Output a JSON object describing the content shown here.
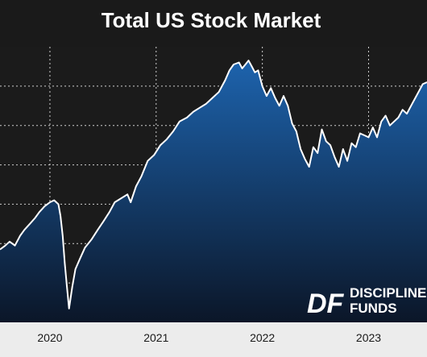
{
  "chart_data": {
    "type": "area",
    "title": "Total US Stock Market",
    "xlabel": "",
    "ylabel": "",
    "x_ticks": [
      "2020",
      "2021",
      "2022",
      "2023"
    ],
    "x_tick_positions": [
      2020.0,
      2021.0,
      2022.0,
      2023.0
    ],
    "xlim": [
      2019.53,
      2023.55
    ],
    "ylim": [
      0,
      7
    ],
    "grid": true,
    "gridlines_y": [
      1,
      2,
      3,
      4,
      5,
      6
    ],
    "series": [
      {
        "name": "",
        "x": [
          2019.53,
          2019.58,
          2019.62,
          2019.67,
          2019.72,
          2019.76,
          2019.81,
          2019.86,
          2019.9,
          2019.95,
          2020.0,
          2020.04,
          2020.08,
          2020.1,
          2020.12,
          2020.14,
          2020.16,
          2020.18,
          2020.21,
          2020.24,
          2020.28,
          2020.33,
          2020.39,
          2020.45,
          2020.5,
          2020.56,
          2020.61,
          2020.67,
          2020.73,
          2020.76,
          2020.81,
          2020.86,
          2020.92,
          2020.98,
          2021.04,
          2021.1,
          2021.16,
          2021.22,
          2021.29,
          2021.35,
          2021.41,
          2021.47,
          2021.53,
          2021.59,
          2021.65,
          2021.69,
          2021.73,
          2021.78,
          2021.81,
          2021.84,
          2021.87,
          2021.9,
          2021.93,
          2021.96,
          2022.0,
          2022.04,
          2022.08,
          2022.12,
          2022.16,
          2022.2,
          2022.24,
          2022.28,
          2022.32,
          2022.36,
          2022.4,
          2022.44,
          2022.48,
          2022.52,
          2022.56,
          2022.6,
          2022.64,
          2022.68,
          2022.72,
          2022.76,
          2022.8,
          2022.84,
          2022.88,
          2022.92,
          2022.96,
          2023.0,
          2023.04,
          2023.08,
          2023.12,
          2023.16,
          2023.2,
          2023.24,
          2023.28,
          2023.32,
          2023.36,
          2023.4,
          2023.44,
          2023.48,
          2023.51,
          2023.55
        ],
        "values": [
          1.85,
          1.95,
          2.05,
          1.95,
          2.2,
          2.35,
          2.5,
          2.65,
          2.8,
          2.95,
          3.05,
          3.1,
          3.0,
          2.7,
          2.2,
          1.5,
          0.9,
          0.35,
          0.9,
          1.35,
          1.6,
          1.9,
          2.1,
          2.35,
          2.55,
          2.8,
          3.05,
          3.15,
          3.25,
          3.05,
          3.45,
          3.7,
          4.1,
          4.25,
          4.5,
          4.65,
          4.85,
          5.1,
          5.2,
          5.35,
          5.45,
          5.55,
          5.7,
          5.85,
          6.15,
          6.4,
          6.55,
          6.6,
          6.45,
          6.55,
          6.65,
          6.5,
          6.35,
          6.4,
          6.0,
          5.75,
          5.95,
          5.7,
          5.5,
          5.75,
          5.5,
          5.05,
          4.85,
          4.4,
          4.15,
          3.95,
          4.45,
          4.3,
          4.9,
          4.6,
          4.5,
          4.2,
          3.95,
          4.4,
          4.1,
          4.55,
          4.45,
          4.8,
          4.75,
          4.7,
          4.95,
          4.7,
          5.1,
          5.25,
          5.0,
          5.1,
          5.2,
          5.4,
          5.3,
          5.5,
          5.7,
          5.9,
          6.05,
          6.1
        ]
      }
    ],
    "colors": {
      "background": "#1a1a1a",
      "plot_background": "#1b1b1b",
      "line": "#ffffff",
      "gradient_top": "#1d63ad",
      "gradient_bottom": "#0b1628",
      "grid": "#cfcfcf",
      "text": "#ffffff",
      "axis_band": "#ececec",
      "axis_text": "#1a1a1a"
    }
  },
  "logo": {
    "mark": "DF",
    "line1": "DISCIPLINE",
    "line2": "FUNDS"
  }
}
